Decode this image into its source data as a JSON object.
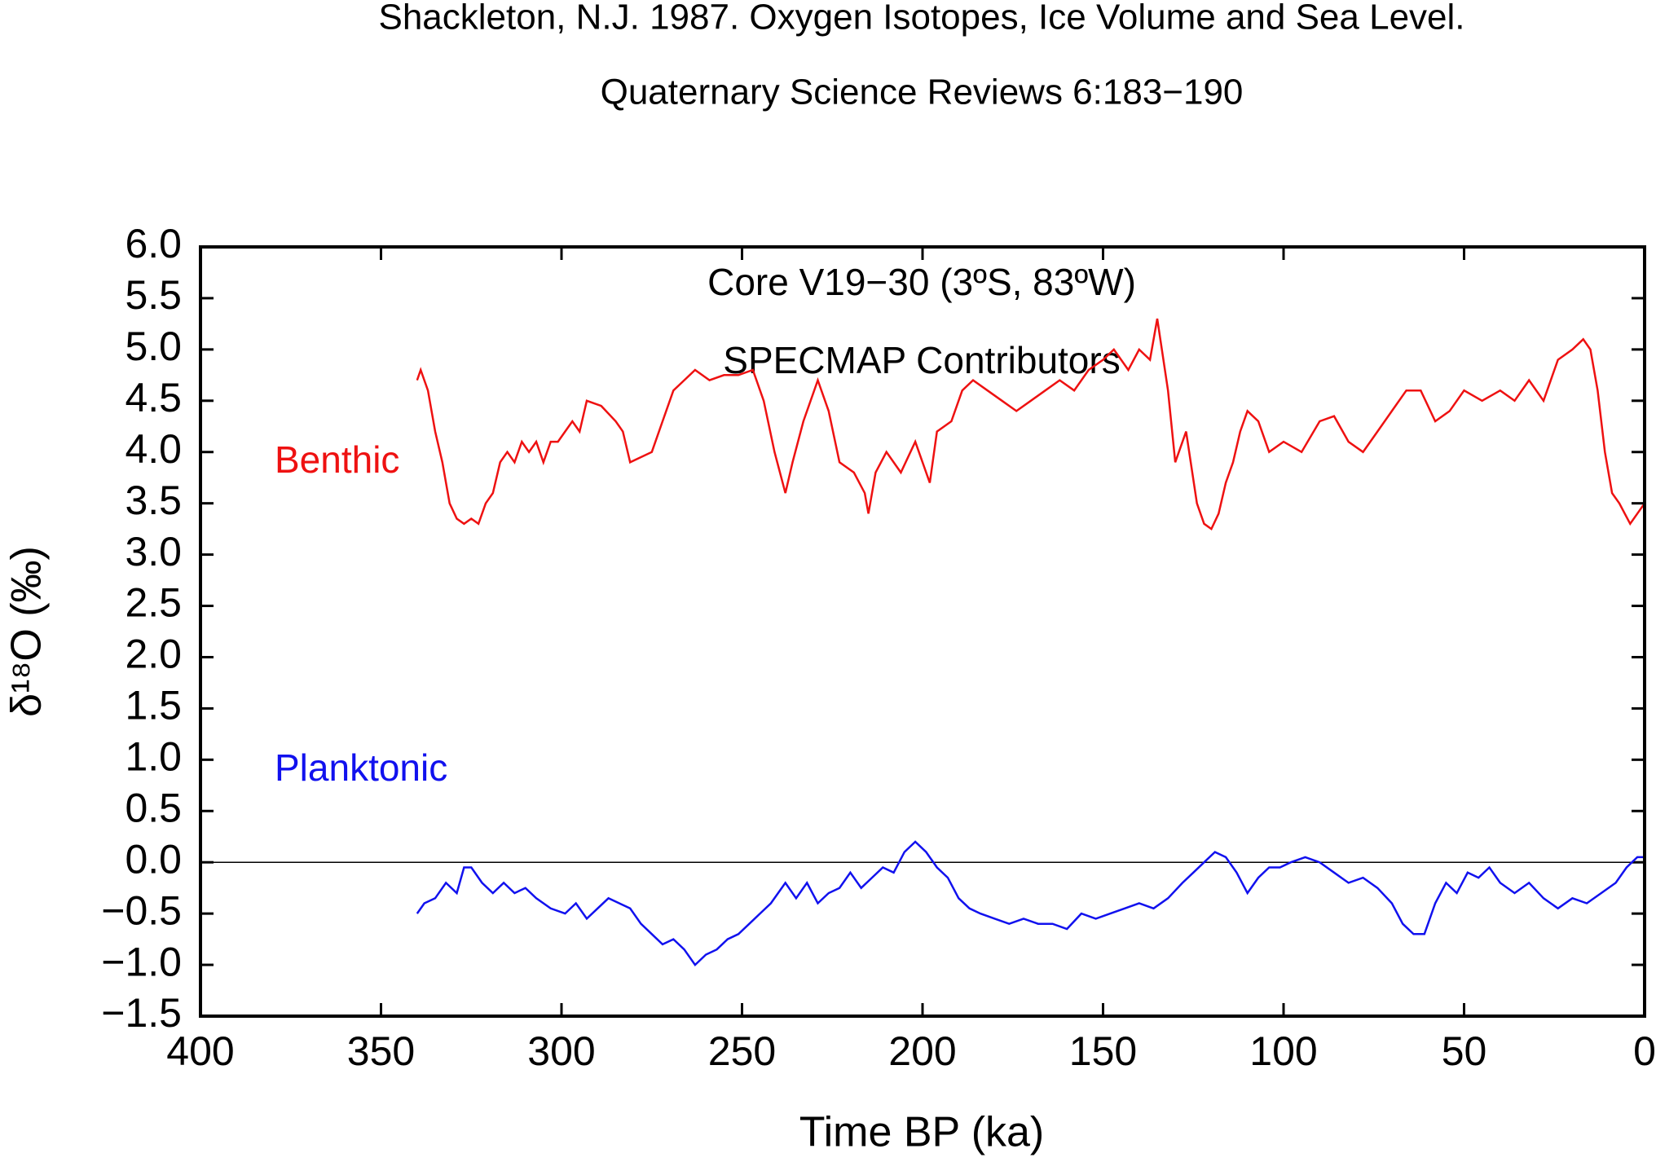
{
  "chart_data": {
    "type": "line",
    "title": "Shackleton, N.J. 1987. Oxygen Isotopes, Ice Volume and Sea Level.",
    "subtitle": "Quaternary Science Reviews 6:183−190",
    "annotations": [
      "Core V19−30 (3ºS, 83ºW)",
      "SPECMAP Contributors"
    ],
    "xlabel": "Time BP (ka)",
    "ylabel": "δ¹⁸O (‰)",
    "xlim": [
      400,
      0
    ],
    "xticks": [
      400,
      350,
      300,
      250,
      200,
      150,
      100,
      50,
      0
    ],
    "ylim": [
      -1.5,
      6.0
    ],
    "yticks": [
      {
        "value": -1.5,
        "label": "−1.5"
      },
      {
        "value": -1.0,
        "label": "−1.0"
      },
      {
        "value": -0.5,
        "label": "−0.5"
      },
      {
        "value": 0,
        "label": "0.0"
      },
      {
        "value": 0.5,
        "label": "0.5"
      },
      {
        "value": 1.0,
        "label": "1.0"
      },
      {
        "value": 1.5,
        "label": "1.5"
      },
      {
        "value": 2.0,
        "label": "2.0"
      },
      {
        "value": 2.5,
        "label": "2.5"
      },
      {
        "value": 3.0,
        "label": "3.0"
      },
      {
        "value": 3.5,
        "label": "3.5"
      },
      {
        "value": 4.0,
        "label": "4.0"
      },
      {
        "value": 4.5,
        "label": "4.5"
      },
      {
        "value": 5.0,
        "label": "5.0"
      },
      {
        "value": 5.5,
        "label": "5.5"
      },
      {
        "value": 6.0,
        "label": "6.0"
      }
    ],
    "reference_line": 0,
    "grid": false,
    "series": [
      {
        "name": "Benthic",
        "color": "#ee1111",
        "x": [
          340,
          339,
          337,
          335,
          333,
          331,
          329,
          327,
          325,
          323,
          321,
          319,
          317,
          315,
          313,
          311,
          309,
          307,
          305,
          303,
          301,
          299,
          297,
          295,
          293,
          289,
          285,
          283,
          281,
          278,
          275,
          272,
          269,
          266,
          263,
          259,
          255,
          251,
          247,
          244,
          241,
          238,
          236,
          233,
          229,
          226,
          223,
          219,
          216,
          215,
          213,
          210,
          206,
          202,
          198,
          196,
          192,
          189,
          186,
          182,
          178,
          174,
          170,
          166,
          162,
          158,
          154,
          150,
          147,
          143,
          140,
          137,
          135,
          132,
          130,
          127,
          124,
          122,
          120,
          118,
          116,
          114,
          112,
          110,
          107,
          104,
          100,
          95,
          90,
          86,
          82,
          78,
          74,
          70,
          66,
          62,
          58,
          54,
          50,
          45,
          40,
          36,
          32,
          28,
          24,
          20,
          17,
          15,
          13,
          11,
          9,
          7,
          4,
          2,
          0
        ],
        "values": [
          4.7,
          4.8,
          4.6,
          4.2,
          3.9,
          3.5,
          3.35,
          3.3,
          3.35,
          3.3,
          3.5,
          3.6,
          3.9,
          4.0,
          3.9,
          4.1,
          4.0,
          4.1,
          3.9,
          4.1,
          4.1,
          4.2,
          4.3,
          4.2,
          4.5,
          4.45,
          4.3,
          4.2,
          3.9,
          3.95,
          4.0,
          4.3,
          4.6,
          4.7,
          4.8,
          4.7,
          4.75,
          4.75,
          4.8,
          4.5,
          4.0,
          3.6,
          3.9,
          4.3,
          4.7,
          4.4,
          3.9,
          3.8,
          3.6,
          3.4,
          3.8,
          4.0,
          3.8,
          4.1,
          3.7,
          4.2,
          4.3,
          4.6,
          4.7,
          4.6,
          4.5,
          4.4,
          4.5,
          4.6,
          4.7,
          4.6,
          4.8,
          4.9,
          5.0,
          4.8,
          5.0,
          4.9,
          5.3,
          4.6,
          3.9,
          4.2,
          3.5,
          3.3,
          3.25,
          3.4,
          3.7,
          3.9,
          4.2,
          4.4,
          4.3,
          4.0,
          4.1,
          4.0,
          4.3,
          4.35,
          4.1,
          4.0,
          4.2,
          4.4,
          4.6,
          4.6,
          4.3,
          4.4,
          4.6,
          4.5,
          4.6,
          4.5,
          4.7,
          4.5,
          4.9,
          5.0,
          5.1,
          5.0,
          4.6,
          4.0,
          3.6,
          3.5,
          3.3,
          3.4,
          3.5
        ]
      },
      {
        "name": "Planktonic",
        "color": "#1111ee",
        "x": [
          340,
          338,
          335,
          332,
          329,
          327,
          325,
          322,
          319,
          316,
          313,
          310,
          307,
          303,
          299,
          296,
          293,
          290,
          287,
          284,
          281,
          278,
          275,
          272,
          269,
          266,
          263,
          260,
          257,
          254,
          251,
          248,
          245,
          242,
          238,
          235,
          232,
          229,
          226,
          223,
          220,
          217,
          214,
          211,
          208,
          205,
          202,
          199,
          196,
          193,
          190,
          187,
          184,
          180,
          176,
          172,
          168,
          164,
          160,
          156,
          152,
          148,
          144,
          140,
          136,
          132,
          128,
          125,
          122,
          119,
          116,
          113,
          110,
          107,
          104,
          101,
          98,
          94,
          90,
          86,
          82,
          78,
          74,
          70,
          67,
          64,
          61,
          58,
          55,
          52,
          49,
          46,
          43,
          40,
          36,
          32,
          28,
          24,
          20,
          16,
          12,
          8,
          5,
          2,
          0
        ],
        "values": [
          -0.5,
          -0.4,
          -0.35,
          -0.2,
          -0.3,
          -0.05,
          -0.05,
          -0.2,
          -0.3,
          -0.2,
          -0.3,
          -0.25,
          -0.35,
          -0.45,
          -0.5,
          -0.4,
          -0.55,
          -0.45,
          -0.35,
          -0.4,
          -0.45,
          -0.6,
          -0.7,
          -0.8,
          -0.75,
          -0.85,
          -1.0,
          -0.9,
          -0.85,
          -0.75,
          -0.7,
          -0.6,
          -0.5,
          -0.4,
          -0.2,
          -0.35,
          -0.2,
          -0.4,
          -0.3,
          -0.25,
          -0.1,
          -0.25,
          -0.15,
          -0.05,
          -0.1,
          0.1,
          0.2,
          0.1,
          -0.05,
          -0.15,
          -0.35,
          -0.45,
          -0.5,
          -0.55,
          -0.6,
          -0.55,
          -0.6,
          -0.6,
          -0.65,
          -0.5,
          -0.55,
          -0.5,
          -0.45,
          -0.4,
          -0.45,
          -0.35,
          -0.2,
          -0.1,
          0.0,
          0.1,
          0.05,
          -0.1,
          -0.3,
          -0.15,
          -0.05,
          -0.05,
          0.0,
          0.05,
          0.0,
          -0.1,
          -0.2,
          -0.15,
          -0.25,
          -0.4,
          -0.6,
          -0.7,
          -0.7,
          -0.4,
          -0.2,
          -0.3,
          -0.1,
          -0.15,
          -0.05,
          -0.2,
          -0.3,
          -0.2,
          -0.35,
          -0.45,
          -0.35,
          -0.4,
          -0.3,
          -0.2,
          -0.05,
          0.05,
          0.05
        ]
      }
    ]
  }
}
